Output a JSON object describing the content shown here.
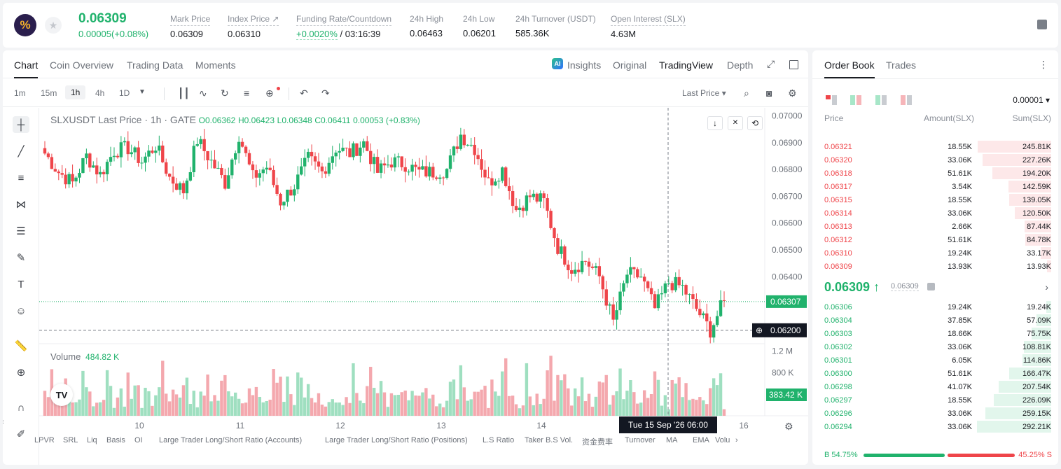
{
  "header": {
    "logo_glyph": "%",
    "last_price": "0.06309",
    "change": "0.00005(+0.08%)",
    "stats": [
      {
        "label": "Mark Price",
        "value": "0.06309"
      },
      {
        "label": "Index Price ↗",
        "value": "0.06310"
      },
      {
        "label": "Funding Rate/Countdown",
        "value_green": "+0.0020%",
        "value": " / 03:16:39"
      },
      {
        "label": "24h High",
        "value": "0.06463"
      },
      {
        "label": "24h Low",
        "value": "0.06201"
      },
      {
        "label": "24h Turnover (USDT)",
        "value": "585.36K"
      },
      {
        "label": "Open Interest (SLX)",
        "value": "4.63M"
      }
    ]
  },
  "chart_tabs": [
    "Chart",
    "Coin Overview",
    "Trading Data",
    "Moments"
  ],
  "view_tabs": [
    "Insights",
    "Original",
    "TradingView",
    "Depth"
  ],
  "intervals": [
    "1m",
    "15m",
    "1h",
    "4h",
    "1D"
  ],
  "price_type": "Last Price ▾",
  "legend": {
    "symbol": "SLXUSDT Last Price · 1h · GATE",
    "o": "O0.06362",
    "h": "H0.06423",
    "l": "L0.06348",
    "c": "C0.06411",
    "chg": "0.00053 (+0.83%)"
  },
  "volume_legend": {
    "label": "Volume",
    "value": "484.82 K"
  },
  "indicators": [
    "LPVR",
    "SRL",
    "Liq",
    "Basis",
    "OI",
    "Large Trader Long/Short Ratio (Accounts)",
    "Large Trader Long/Short Ratio (Positions)",
    "L.S Ratio",
    "Taker B.S Vol.",
    "资金费率",
    "Turnover",
    "MA",
    "EMA",
    "Volu"
  ],
  "chart_data": {
    "type": "candlestick",
    "title": "SLXUSDT Last Price · 1h · GATE",
    "ylim": [
      0.0615,
      0.0703
    ],
    "y_ticks": [
      "0.07000",
      "0.06900",
      "0.06800",
      "0.06700",
      "0.06600",
      "0.06500",
      "0.06400"
    ],
    "x_ticks": [
      "10",
      "11",
      "12",
      "13",
      "14",
      "16"
    ],
    "current_price_label": "0.06307",
    "crosshair_price_label": "0.06200",
    "crosshair_time_label": "Tue 15 Sep '26   06:00",
    "volume_ticks": [
      "1.2 M",
      "800 K"
    ],
    "volume_current_label": "383.42 K",
    "volume_max": 1300000,
    "series_anchor_prices": [
      0.0686,
      0.0679,
      0.0675,
      0.0685,
      0.0678,
      0.0687,
      0.0688,
      0.0683,
      0.0689,
      0.0677,
      0.0672,
      0.0691,
      0.0683,
      0.0675,
      0.0693,
      0.0677,
      0.0681,
      0.0668,
      0.0674,
      0.0684,
      0.0679,
      0.0688,
      0.0686,
      0.069,
      0.0679,
      0.0683,
      0.0682,
      0.0679,
      0.0679,
      0.068,
      0.0693,
      0.0688,
      0.0675,
      0.068,
      0.0665,
      0.067,
      0.0668,
      0.0651,
      0.0643,
      0.0646,
      0.064,
      0.0623,
      0.0641,
      0.064,
      0.0628,
      0.0638,
      0.0636,
      0.0628,
      0.062,
      0.0631
    ],
    "colors": {
      "up": "#20b26c",
      "down": "#ef454a",
      "up_vol": "#9fdfc0",
      "down_vol": "#f4a8ae"
    }
  },
  "order_book": {
    "tabs": [
      "Order Book",
      "Trades"
    ],
    "precision": "0.00001 ▾",
    "headers": {
      "price": "Price",
      "amount": "Amount(SLX)",
      "sum": "Sum(SLX)"
    },
    "asks": [
      {
        "price": "0.06321",
        "amount": "18.55K",
        "sum": "245.81K",
        "depth": 0.99
      },
      {
        "price": "0.06320",
        "amount": "33.06K",
        "sum": "227.26K",
        "depth": 0.92
      },
      {
        "price": "0.06318",
        "amount": "51.61K",
        "sum": "194.20K",
        "depth": 0.79
      },
      {
        "price": "0.06317",
        "amount": "3.54K",
        "sum": "142.59K",
        "depth": 0.58
      },
      {
        "price": "0.06315",
        "amount": "18.55K",
        "sum": "139.05K",
        "depth": 0.57
      },
      {
        "price": "0.06314",
        "amount": "33.06K",
        "sum": "120.50K",
        "depth": 0.49
      },
      {
        "price": "0.06313",
        "amount": "2.66K",
        "sum": "87.44K",
        "depth": 0.36
      },
      {
        "price": "0.06312",
        "amount": "51.61K",
        "sum": "84.78K",
        "depth": 0.35
      },
      {
        "price": "0.06310",
        "amount": "19.24K",
        "sum": "33.17K",
        "depth": 0.14
      },
      {
        "price": "0.06309",
        "amount": "13.93K",
        "sum": "13.93K",
        "depth": 0.06
      }
    ],
    "mid_price": "0.06309 ↑",
    "mark_price": "0.06309",
    "bids": [
      {
        "price": "0.06306",
        "amount": "19.24K",
        "sum": "19.24K",
        "depth": 0.07
      },
      {
        "price": "0.06304",
        "amount": "37.85K",
        "sum": "57.09K",
        "depth": 0.2
      },
      {
        "price": "0.06303",
        "amount": "18.66K",
        "sum": "75.75K",
        "depth": 0.26
      },
      {
        "price": "0.06302",
        "amount": "33.06K",
        "sum": "108.81K",
        "depth": 0.37
      },
      {
        "price": "0.06301",
        "amount": "6.05K",
        "sum": "114.86K",
        "depth": 0.39
      },
      {
        "price": "0.06300",
        "amount": "51.61K",
        "sum": "166.47K",
        "depth": 0.57
      },
      {
        "price": "0.06298",
        "amount": "41.07K",
        "sum": "207.54K",
        "depth": 0.71
      },
      {
        "price": "0.06297",
        "amount": "18.55K",
        "sum": "226.09K",
        "depth": 0.77
      },
      {
        "price": "0.06296",
        "amount": "33.06K",
        "sum": "259.15K",
        "depth": 0.89
      },
      {
        "price": "0.06294",
        "amount": "33.06K",
        "sum": "292.21K",
        "depth": 1.0
      }
    ],
    "buy_ratio": "B 54.75%",
    "sell_ratio": "45.25% S",
    "buy_fraction": 0.5475
  }
}
